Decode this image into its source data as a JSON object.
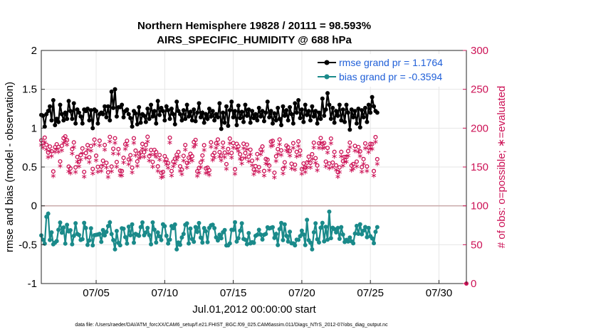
{
  "chart_data": {
    "type": "line",
    "title": "Northern Hemisphere 19828 / 20111 = 98.593%",
    "subtitle": "AIRS_SPECIFIC_HUMIDITY @ 688 hPa",
    "xlabel": "Jul.01,2012 00:00:00 start",
    "ylabel_left": "rmse and bias (model - observation)",
    "ylabel_right": "# of obs: o=possible; ∗=evaluated",
    "footer": "data file: /Users/raeder/DAI/ATM_forcXX/CAM6_setup/f.e21.FHIST_BGC.f09_025.CAM6assim.011/Diags_NTrS_2012-07/obs_diag_output.nc",
    "xlim": [
      1.0,
      32.0
    ],
    "ylim_left": [
      -1,
      2
    ],
    "ylim_right": [
      0,
      300
    ],
    "x_ticks": [
      5,
      10,
      15,
      20,
      25,
      30
    ],
    "x_tick_labels": [
      "07/05",
      "07/10",
      "07/15",
      "07/20",
      "07/25",
      "07/30"
    ],
    "y_left_ticks": [
      -1,
      -0.5,
      0,
      0.5,
      1,
      1.5,
      2
    ],
    "y_left_tick_labels": [
      "-1",
      "-0.5",
      "0",
      "0.5",
      "1",
      "1.5",
      "2"
    ],
    "y_right_ticks": [
      0,
      50,
      100,
      150,
      200,
      250,
      300
    ],
    "y_right_tick_labels": [
      "0",
      "50",
      "100",
      "150",
      "200",
      "250",
      "300"
    ],
    "grid": true,
    "legend_position": "top-right",
    "colors": {
      "rmse": "#000000",
      "bias": "#1a8a8a",
      "obs": "#cc1155",
      "zero_line": "#c9a8a8",
      "grid": "#e6e6e6",
      "legend_text": "#1f5fd8"
    },
    "series": [
      {
        "name": "rmse grand pr = 1.1764",
        "axis": "left",
        "values": [
          1.17,
          1.16,
          1.02,
          1.18,
          1.22,
          1.28,
          1.1,
          1.36,
          1.04,
          1.12,
          1.08,
          1.3,
          1.18,
          1.1,
          1.2,
          1.12,
          1.35,
          1.22,
          1.12,
          1.32,
          1.06,
          1.24,
          1.2,
          1.15,
          1.06,
          1.24,
          1.22,
          1.25,
          1.1,
          1.23,
          1.0,
          1.24,
          1.22,
          1.06,
          1.18,
          1.2,
          1.18,
          1.28,
          1.14,
          1.28,
          1.1,
          1.47,
          1.26,
          1.5,
          1.15,
          1.27,
          1.27,
          1.3,
          1.14,
          1.22,
          1.24,
          1.18,
          1.13,
          1.02,
          1.22,
          1.19,
          1.05,
          1.27,
          1.07,
          1.18,
          1.16,
          1.08,
          1.25,
          1.12,
          1.3,
          1.15,
          1.22,
          1.06,
          1.35,
          1.17,
          1.26,
          1.22,
          1.1,
          1.28,
          1.23,
          1.12,
          1.25,
          1.18,
          1.05,
          1.34,
          1.22,
          1.18,
          1.1,
          1.23,
          1.12,
          1.3,
          1.15,
          1.21,
          1.1,
          1.24,
          1.09,
          1.2,
          1.32,
          1.14,
          1.2,
          1.07,
          1.18,
          1.12,
          1.25,
          1.15,
          1.22,
          1.1,
          1.18,
          1.14,
          1.32,
          0.99,
          1.2,
          1.07,
          1.28,
          1.03,
          1.23,
          1.34,
          1.14,
          1.22,
          1.04,
          1.29,
          1.13,
          1.21,
          1.08,
          1.3,
          1.16,
          1.24,
          1.07,
          1.22,
          1.13,
          1.18,
          1.1,
          1.26,
          1.15,
          1.22,
          1.09,
          1.2,
          1.34,
          1.14,
          1.22,
          1.06,
          1.19,
          1.1,
          1.26,
          1.12,
          1.04,
          1.28,
          1.16,
          1.23,
          1.1,
          1.27,
          1.18,
          1.06,
          1.32,
          1.2,
          1.36,
          1.13,
          1.24,
          1.08,
          1.3,
          1.17,
          1.22,
          1.1,
          1.28,
          1.15,
          1.22,
          1.06,
          1.2,
          1.12,
          1.38,
          1.16,
          1.24,
          1.45,
          1.3,
          1.12,
          1.26,
          1.07,
          1.22,
          1.16,
          1.3,
          1.1,
          1.24,
          1.08,
          1.3,
          1.2,
          0.98,
          1.24,
          1.14,
          1.22,
          1.06,
          1.25,
          1.01,
          1.23,
          1.14,
          1.26,
          1.08,
          1.3,
          1.2,
          1.4,
          1.28,
          1.22,
          1.2
        ],
        "x_step": 0.125
      }
    ],
    "legend": [
      {
        "label": "rmse grand pr = 1.1764",
        "color": "#000000"
      },
      {
        "label": "bias grand pr = -0.3594",
        "color": "#1a8a8a"
      }
    ]
  }
}
